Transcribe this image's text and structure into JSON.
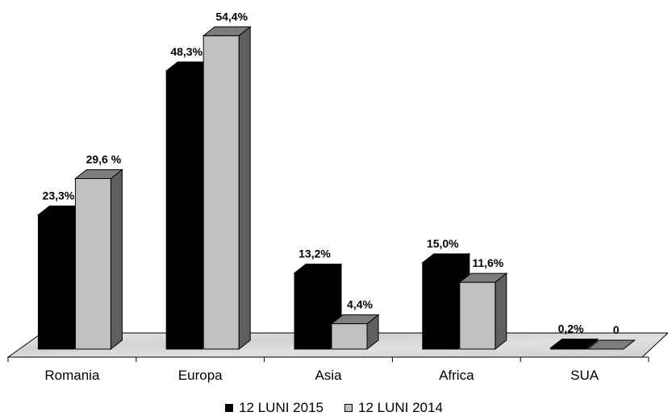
{
  "chart_data": {
    "type": "bar",
    "categories": [
      "Romania",
      "Europa",
      "Asia",
      "Africa",
      "SUA"
    ],
    "series": [
      {
        "name": "12 LUNI 2015",
        "color": "#000000",
        "values": [
          23.3,
          48.3,
          13.2,
          15.0,
          0.2
        ],
        "labels": [
          "23,3%",
          "48,3%",
          "13,2%",
          "15,0%",
          "0,2%"
        ]
      },
      {
        "name": "12 LUNI 2014",
        "color": "#c0c0c0",
        "values": [
          29.6,
          54.4,
          4.4,
          11.6,
          0
        ],
        "labels": [
          "29,6 %",
          "54,4%",
          "4,4%",
          "11,6%",
          "0"
        ]
      }
    ],
    "ylim": [
      0,
      55
    ],
    "grid": false,
    "three_d": true,
    "legend_position": "bottom"
  }
}
